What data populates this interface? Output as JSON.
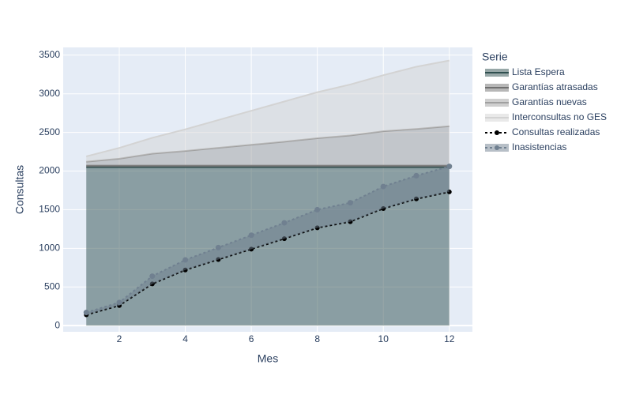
{
  "chart_data": {
    "type": "area",
    "x_label": "Mes",
    "y_label": "Consultas",
    "legend_title": "Serie",
    "x": [
      1,
      2,
      3,
      4,
      5,
      6,
      7,
      8,
      9,
      10,
      11,
      12
    ],
    "xlim": [
      0.3,
      12.7
    ],
    "xticks": [
      2,
      4,
      6,
      8,
      10,
      12
    ],
    "ylim": [
      -80,
      3600
    ],
    "yticks": [
      0,
      500,
      1000,
      1500,
      2000,
      2500,
      3000,
      3500
    ],
    "grid": true,
    "legend": "right",
    "series": [
      {
        "name": "Lista Espera",
        "color": "#2f4f4f",
        "fill": "stack",
        "values": [
          2050,
          2050,
          2050,
          2050,
          2050,
          2050,
          2050,
          2050,
          2050,
          2050,
          2050,
          2050
        ]
      },
      {
        "name": "Garantías atrasadas",
        "color": "#707070",
        "fill": "stack",
        "values": [
          20,
          20,
          20,
          20,
          20,
          20,
          20,
          20,
          20,
          20,
          20,
          20
        ]
      },
      {
        "name": "Garantías nuevas",
        "color": "#a0a0a0",
        "fill": "stack",
        "values": [
          50,
          90,
          155,
          190,
          230,
          270,
          310,
          355,
          390,
          445,
          475,
          510
        ]
      },
      {
        "name": "Interconsultas no GES",
        "color": "#d3d3d3",
        "fill": "stack",
        "values": [
          70,
          140,
          205,
          280,
          360,
          440,
          520,
          595,
          660,
          725,
          805,
          850
        ]
      },
      {
        "name": "Consultas realizadas",
        "color": "#000000",
        "fill": "none",
        "dash": "dot",
        "values": [
          140,
          260,
          540,
          720,
          855,
          990,
          1125,
          1265,
          1345,
          1515,
          1640,
          1730
        ]
      },
      {
        "name": "Inasistencias",
        "color": "#708090",
        "fill": "tonext",
        "dash": "dot",
        "values": [
          170,
          300,
          640,
          850,
          1010,
          1170,
          1330,
          1500,
          1590,
          1800,
          1940,
          2060
        ]
      }
    ]
  }
}
